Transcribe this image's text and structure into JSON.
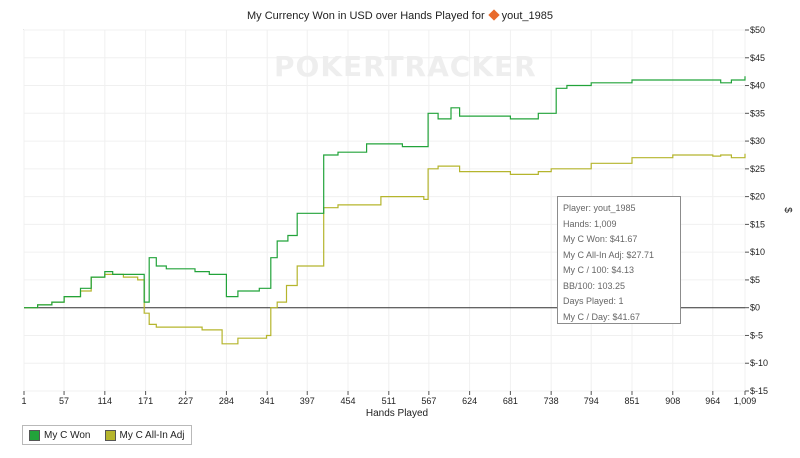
{
  "title": {
    "text_prefix": "My Currency Won in USD over Hands Played for",
    "player_icon": "orange-diamond-icon",
    "player_name": "yout_1985"
  },
  "watermark": "POKERTRACKER",
  "legend": [
    {
      "label": "My C Won",
      "color": "#22a33a"
    },
    {
      "label": "My C All-In Adj",
      "color": "#b5b52d"
    }
  ],
  "tooltip": [
    "Player: yout_1985",
    "Hands: 1,009",
    "My C Won: $41.67",
    "My C All-In Adj: $27.71",
    "My C / 100: $4.13",
    "BB/100: 103.25",
    "Days Played: 1",
    "My C / Day: $41.67"
  ],
  "chart_data": {
    "type": "line",
    "xlabel": "Hands Played",
    "ylabel": "$",
    "xlim": [
      1,
      1009
    ],
    "ylim": [
      -15,
      50
    ],
    "x_ticks": [
      1,
      57,
      114,
      171,
      227,
      284,
      341,
      397,
      454,
      511,
      567,
      624,
      681,
      738,
      794,
      851,
      908,
      964,
      1009
    ],
    "x_tick_labels": [
      "1",
      "57",
      "114",
      "171",
      "227",
      "284",
      "341",
      "397",
      "454",
      "511",
      "567",
      "624",
      "681",
      "738",
      "794",
      "851",
      "908",
      "964",
      "1,009"
    ],
    "y_ticks": [
      -15,
      -10,
      -5,
      0,
      5,
      10,
      15,
      20,
      25,
      30,
      35,
      40,
      45,
      50
    ],
    "y_tick_labels": [
      "$-15",
      "$-10",
      "$-5",
      "$0",
      "$5",
      "$10",
      "$15",
      "$20",
      "$25",
      "$30",
      "$35",
      "$40",
      "$45",
      "$50"
    ],
    "series": [
      {
        "name": "My C Won",
        "color": "#22a33a",
        "points": [
          [
            1,
            0
          ],
          [
            20,
            0.5
          ],
          [
            40,
            1
          ],
          [
            57,
            2
          ],
          [
            70,
            2
          ],
          [
            80,
            3.5
          ],
          [
            95,
            5.5
          ],
          [
            114,
            6.5
          ],
          [
            125,
            6
          ],
          [
            140,
            6
          ],
          [
            160,
            6
          ],
          [
            169,
            1
          ],
          [
            176,
            9
          ],
          [
            186,
            7.5
          ],
          [
            200,
            7
          ],
          [
            227,
            7
          ],
          [
            240,
            6.5
          ],
          [
            260,
            6
          ],
          [
            284,
            2
          ],
          [
            300,
            3
          ],
          [
            330,
            3.5
          ],
          [
            341,
            3.5
          ],
          [
            346,
            9
          ],
          [
            355,
            12
          ],
          [
            370,
            13
          ],
          [
            383,
            17
          ],
          [
            395,
            17
          ],
          [
            410,
            17
          ],
          [
            420,
            27.5
          ],
          [
            440,
            28
          ],
          [
            454,
            28
          ],
          [
            470,
            28
          ],
          [
            480,
            29.5
          ],
          [
            500,
            29.5
          ],
          [
            530,
            29
          ],
          [
            560,
            29
          ],
          [
            566,
            35
          ],
          [
            580,
            34
          ],
          [
            598,
            36
          ],
          [
            610,
            34.5
          ],
          [
            640,
            34.5
          ],
          [
            681,
            34
          ],
          [
            720,
            35
          ],
          [
            738,
            35
          ],
          [
            745,
            39.5
          ],
          [
            760,
            40
          ],
          [
            794,
            40.5
          ],
          [
            851,
            41
          ],
          [
            908,
            41
          ],
          [
            964,
            41
          ],
          [
            975,
            40.5
          ],
          [
            990,
            41
          ],
          [
            1009,
            41.67
          ]
        ]
      },
      {
        "name": "My C All-In Adj",
        "color": "#b5b52d",
        "points": [
          [
            1,
            0
          ],
          [
            20,
            0.5
          ],
          [
            40,
            1
          ],
          [
            57,
            2
          ],
          [
            70,
            2
          ],
          [
            80,
            3
          ],
          [
            95,
            5.5
          ],
          [
            114,
            6
          ],
          [
            140,
            5.5
          ],
          [
            160,
            5
          ],
          [
            169,
            -1
          ],
          [
            176,
            -3
          ],
          [
            186,
            -3.5
          ],
          [
            227,
            -3.5
          ],
          [
            250,
            -4
          ],
          [
            271,
            -4
          ],
          [
            278,
            -6.5
          ],
          [
            300,
            -5.5
          ],
          [
            320,
            -5.5
          ],
          [
            340,
            -5
          ],
          [
            346,
            0
          ],
          [
            355,
            1
          ],
          [
            368,
            4
          ],
          [
            383,
            7.5
          ],
          [
            395,
            7.5
          ],
          [
            410,
            7.5
          ],
          [
            420,
            18
          ],
          [
            440,
            18.5
          ],
          [
            480,
            18.5
          ],
          [
            500,
            20
          ],
          [
            540,
            20
          ],
          [
            560,
            19.5
          ],
          [
            566,
            25
          ],
          [
            580,
            25.5
          ],
          [
            598,
            25.5
          ],
          [
            610,
            24.5
          ],
          [
            640,
            24.5
          ],
          [
            681,
            24
          ],
          [
            720,
            24.5
          ],
          [
            738,
            25
          ],
          [
            794,
            26
          ],
          [
            851,
            27
          ],
          [
            908,
            27.5
          ],
          [
            964,
            27.3
          ],
          [
            975,
            27.5
          ],
          [
            990,
            27
          ],
          [
            1009,
            27.71
          ]
        ]
      }
    ]
  }
}
